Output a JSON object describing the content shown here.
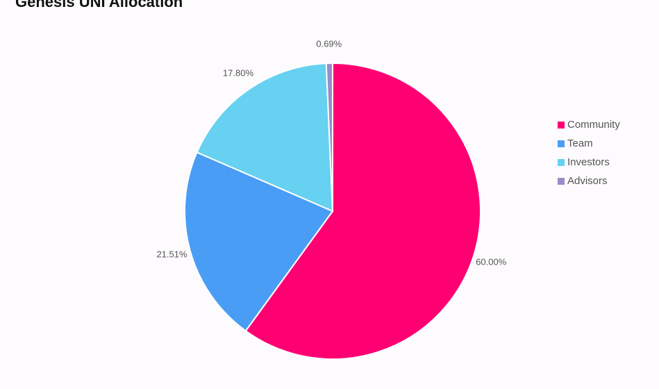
{
  "chart_data": {
    "type": "pie",
    "title": "Genesis UNI Allocation",
    "categories": [
      "Community",
      "Team",
      "Investors",
      "Advisors"
    ],
    "values": [
      60,
      21.51,
      17.8,
      0.69
    ],
    "value_labels": [
      "60.00%",
      "21.51%",
      "17.80%",
      "0.69%"
    ],
    "colors": [
      "#ff0073",
      "#4a9df5",
      "#66d1f0",
      "#9a8cc6"
    ],
    "legend": "right"
  }
}
